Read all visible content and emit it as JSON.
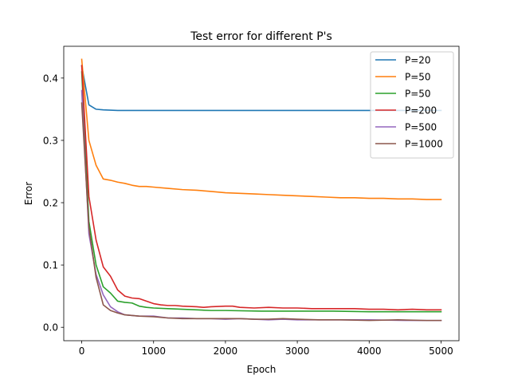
{
  "chart_data": {
    "type": "line",
    "title": "Test error for different P's",
    "xlabel": "Epoch",
    "ylabel": "Error",
    "xlim": [
      -250,
      5250
    ],
    "ylim": [
      -0.0215,
      0.451
    ],
    "xticks": [
      0,
      1000,
      2000,
      3000,
      4000,
      5000
    ],
    "yticks": [
      0.0,
      0.1,
      0.2,
      0.3,
      0.4
    ],
    "ytick_labels": [
      "0.0",
      "0.1",
      "0.2",
      "0.3",
      "0.4"
    ],
    "grid": false,
    "legend_position": "top-right",
    "series": [
      {
        "name": "P=20",
        "color": "#1f77b4",
        "points": [
          [
            0,
            0.42
          ],
          [
            100,
            0.357
          ],
          [
            200,
            0.35
          ],
          [
            300,
            0.349
          ],
          [
            500,
            0.348
          ],
          [
            1000,
            0.348
          ],
          [
            1500,
            0.348
          ],
          [
            2000,
            0.348
          ],
          [
            3000,
            0.348
          ],
          [
            4000,
            0.348
          ],
          [
            5000,
            0.348
          ]
        ]
      },
      {
        "name": "P=50",
        "color": "#ff7f0e",
        "points": [
          [
            0,
            0.43
          ],
          [
            100,
            0.3
          ],
          [
            200,
            0.26
          ],
          [
            300,
            0.238
          ],
          [
            400,
            0.236
          ],
          [
            500,
            0.233
          ],
          [
            600,
            0.231
          ],
          [
            700,
            0.228
          ],
          [
            800,
            0.226
          ],
          [
            900,
            0.226
          ],
          [
            1000,
            0.225
          ],
          [
            1200,
            0.223
          ],
          [
            1400,
            0.221
          ],
          [
            1600,
            0.22
          ],
          [
            1800,
            0.218
          ],
          [
            2000,
            0.216
          ],
          [
            2200,
            0.215
          ],
          [
            2400,
            0.214
          ],
          [
            2600,
            0.213
          ],
          [
            2800,
            0.212
          ],
          [
            3000,
            0.211
          ],
          [
            3200,
            0.21
          ],
          [
            3400,
            0.209
          ],
          [
            3600,
            0.208
          ],
          [
            3800,
            0.208
          ],
          [
            4000,
            0.207
          ],
          [
            4200,
            0.207
          ],
          [
            4400,
            0.206
          ],
          [
            4600,
            0.206
          ],
          [
            4800,
            0.205
          ],
          [
            5000,
            0.205
          ]
        ]
      },
      {
        "name": "P=50",
        "color": "#2ca02c",
        "points": [
          [
            0,
            0.41
          ],
          [
            100,
            0.17
          ],
          [
            200,
            0.1
          ],
          [
            300,
            0.065
          ],
          [
            400,
            0.055
          ],
          [
            500,
            0.042
          ],
          [
            600,
            0.04
          ],
          [
            700,
            0.039
          ],
          [
            800,
            0.034
          ],
          [
            900,
            0.032
          ],
          [
            1000,
            0.031
          ],
          [
            1200,
            0.03
          ],
          [
            1400,
            0.029
          ],
          [
            1600,
            0.028
          ],
          [
            1800,
            0.027
          ],
          [
            2000,
            0.027
          ],
          [
            2500,
            0.026
          ],
          [
            3000,
            0.026
          ],
          [
            3500,
            0.026
          ],
          [
            4000,
            0.025
          ],
          [
            4500,
            0.025
          ],
          [
            5000,
            0.025
          ]
        ]
      },
      {
        "name": "P=200",
        "color": "#d62728",
        "points": [
          [
            0,
            0.42
          ],
          [
            100,
            0.21
          ],
          [
            200,
            0.14
          ],
          [
            300,
            0.097
          ],
          [
            400,
            0.082
          ],
          [
            500,
            0.06
          ],
          [
            600,
            0.05
          ],
          [
            700,
            0.047
          ],
          [
            800,
            0.046
          ],
          [
            900,
            0.042
          ],
          [
            1000,
            0.038
          ],
          [
            1100,
            0.036
          ],
          [
            1200,
            0.035
          ],
          [
            1300,
            0.035
          ],
          [
            1400,
            0.034
          ],
          [
            1600,
            0.033
          ],
          [
            1700,
            0.032
          ],
          [
            1800,
            0.033
          ],
          [
            2000,
            0.034
          ],
          [
            2100,
            0.034
          ],
          [
            2200,
            0.032
          ],
          [
            2400,
            0.031
          ],
          [
            2600,
            0.032
          ],
          [
            2800,
            0.031
          ],
          [
            3000,
            0.031
          ],
          [
            3200,
            0.03
          ],
          [
            3500,
            0.03
          ],
          [
            3800,
            0.03
          ],
          [
            4000,
            0.029
          ],
          [
            4200,
            0.029
          ],
          [
            4400,
            0.028
          ],
          [
            4600,
            0.029
          ],
          [
            4800,
            0.028
          ],
          [
            5000,
            0.028
          ]
        ]
      },
      {
        "name": "P=500",
        "color": "#9467bd",
        "points": [
          [
            0,
            0.38
          ],
          [
            100,
            0.15
          ],
          [
            200,
            0.085
          ],
          [
            300,
            0.052
          ],
          [
            400,
            0.033
          ],
          [
            500,
            0.025
          ],
          [
            600,
            0.02
          ],
          [
            800,
            0.018
          ],
          [
            1000,
            0.018
          ],
          [
            1200,
            0.015
          ],
          [
            1400,
            0.015
          ],
          [
            1600,
            0.014
          ],
          [
            1800,
            0.014
          ],
          [
            2000,
            0.013
          ],
          [
            2200,
            0.014
          ],
          [
            2400,
            0.013
          ],
          [
            2600,
            0.012
          ],
          [
            2800,
            0.013
          ],
          [
            3000,
            0.012
          ],
          [
            3500,
            0.012
          ],
          [
            4000,
            0.012
          ],
          [
            4500,
            0.011
          ],
          [
            5000,
            0.011
          ]
        ]
      },
      {
        "name": "P=1000",
        "color": "#8c564b",
        "points": [
          [
            0,
            0.36
          ],
          [
            100,
            0.16
          ],
          [
            200,
            0.08
          ],
          [
            300,
            0.036
          ],
          [
            400,
            0.027
          ],
          [
            500,
            0.023
          ],
          [
            600,
            0.02
          ],
          [
            800,
            0.018
          ],
          [
            1000,
            0.017
          ],
          [
            1200,
            0.015
          ],
          [
            1400,
            0.014
          ],
          [
            1600,
            0.014
          ],
          [
            1800,
            0.014
          ],
          [
            2000,
            0.014
          ],
          [
            2200,
            0.014
          ],
          [
            2400,
            0.013
          ],
          [
            2600,
            0.013
          ],
          [
            2800,
            0.014
          ],
          [
            3000,
            0.013
          ],
          [
            3300,
            0.012
          ],
          [
            3600,
            0.012
          ],
          [
            4000,
            0.011
          ],
          [
            4400,
            0.012
          ],
          [
            4800,
            0.011
          ],
          [
            5000,
            0.011
          ]
        ]
      }
    ]
  }
}
